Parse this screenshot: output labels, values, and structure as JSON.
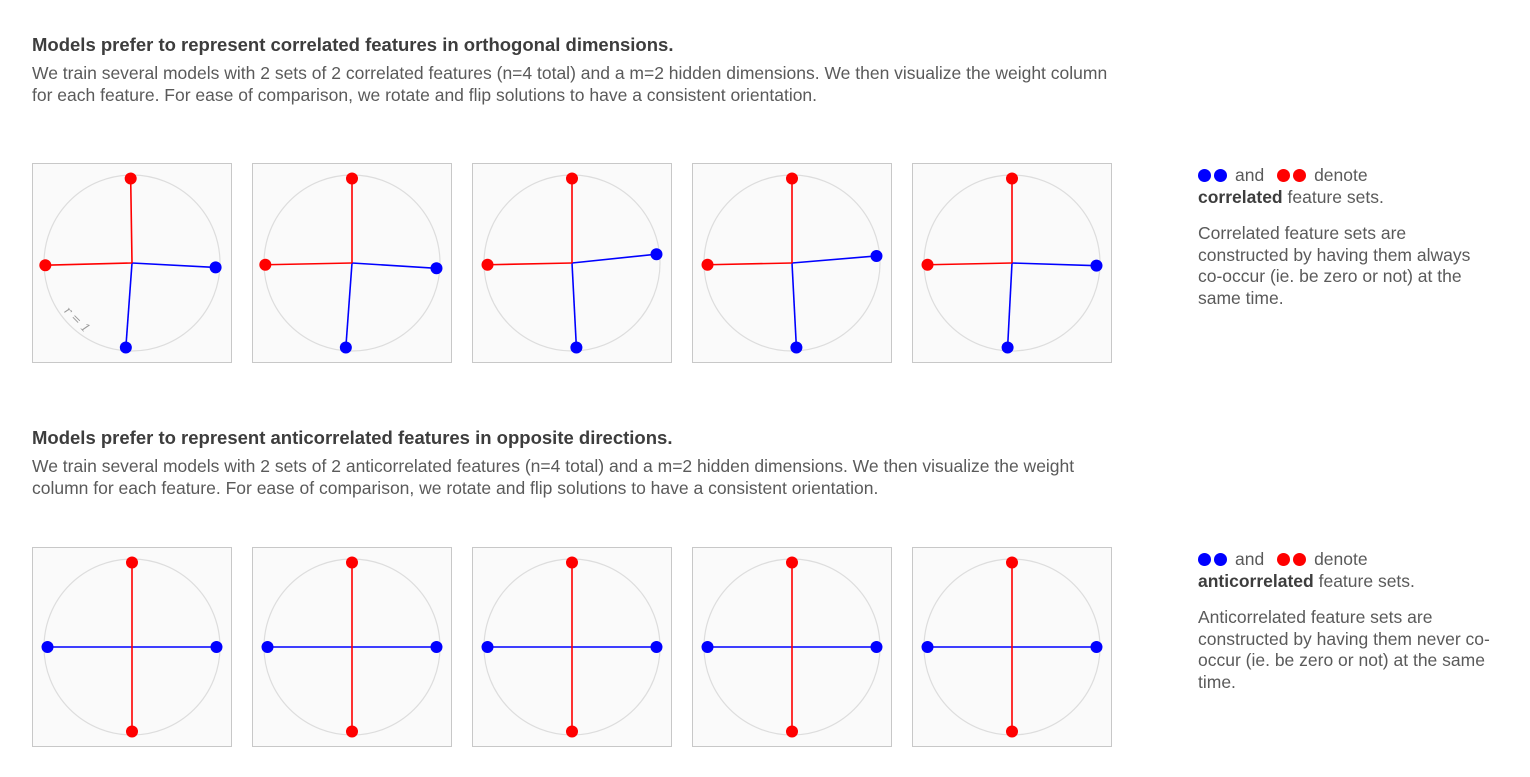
{
  "colors": {
    "set_a": "#0000ff",
    "set_b": "#ff0000",
    "circle": "#dddddd",
    "panel_border": "#c8c8c8"
  },
  "sections": [
    {
      "heading": "Models prefer to represent correlated features in orthogonal dimensions.",
      "description": "We train several models with 2 sets of 2 correlated features (n=4 total) and a m=2 hidden dimensions. We then visualize the weight column for each feature. For ease of comparison, we rotate and flip solutions to have a consistent orientation.",
      "radius_label": "r = 1",
      "note": {
        "and_text": "and",
        "denote_text": "denote",
        "emphasis": "correlated",
        "suffix": "feature sets.",
        "explanation": "Correlated feature sets are constructed by having them always co-occur (ie. be zero or not) at the same time."
      },
      "models": [
        {
          "red": [
            [
              -0.015,
              0.96
            ],
            [
              -0.985,
              -0.025
            ]
          ],
          "blue": [
            [
              0.95,
              -0.05
            ],
            [
              -0.07,
              -0.96
            ]
          ]
        },
        {
          "red": [
            [
              0.0,
              0.96
            ],
            [
              -0.985,
              -0.02
            ]
          ],
          "blue": [
            [
              0.96,
              -0.06
            ],
            [
              -0.07,
              -0.96
            ]
          ]
        },
        {
          "red": [
            [
              0.0,
              0.96
            ],
            [
              -0.96,
              -0.02
            ]
          ],
          "blue": [
            [
              0.96,
              0.1
            ],
            [
              0.05,
              -0.96
            ]
          ]
        },
        {
          "red": [
            [
              0.0,
              0.96
            ],
            [
              -0.96,
              -0.02
            ]
          ],
          "blue": [
            [
              0.96,
              0.08
            ],
            [
              0.05,
              -0.96
            ]
          ]
        },
        {
          "red": [
            [
              0.0,
              0.96
            ],
            [
              -0.96,
              -0.02
            ]
          ],
          "blue": [
            [
              0.96,
              -0.03
            ],
            [
              -0.05,
              -0.96
            ]
          ]
        }
      ]
    },
    {
      "heading": "Models prefer to represent anticorrelated features in opposite directions.",
      "description": "We train several models with 2 sets of 2 anticorrelated features (n=4 total) and a m=2 hidden dimensions. We then visualize the weight column for each feature. For ease of comparison, we rotate and flip solutions to have a consistent orientation.",
      "radius_label": "",
      "note": {
        "and_text": "and",
        "denote_text": "denote",
        "emphasis": "anticorrelated",
        "suffix": "feature sets.",
        "explanation": "Anticorrelated feature sets are constructed by having them never co-occur (ie. be zero or not) at the same time."
      },
      "models": [
        {
          "red": [
            [
              0.0,
              0.96
            ],
            [
              0.0,
              -0.96
            ]
          ],
          "blue": [
            [
              -0.96,
              0.0
            ],
            [
              0.96,
              0.0
            ]
          ]
        },
        {
          "red": [
            [
              0.0,
              0.96
            ],
            [
              0.0,
              -0.96
            ]
          ],
          "blue": [
            [
              -0.96,
              0.0
            ],
            [
              0.96,
              0.0
            ]
          ]
        },
        {
          "red": [
            [
              0.0,
              0.96
            ],
            [
              0.0,
              -0.96
            ]
          ],
          "blue": [
            [
              -0.96,
              0.0
            ],
            [
              0.96,
              0.0
            ]
          ]
        },
        {
          "red": [
            [
              0.0,
              0.96
            ],
            [
              0.0,
              -0.96
            ]
          ],
          "blue": [
            [
              -0.96,
              0.0
            ],
            [
              0.96,
              0.0
            ]
          ]
        },
        {
          "red": [
            [
              0.0,
              0.96
            ],
            [
              0.0,
              -0.96
            ]
          ],
          "blue": [
            [
              -0.96,
              0.0
            ],
            [
              0.96,
              0.0
            ]
          ]
        }
      ]
    }
  ]
}
